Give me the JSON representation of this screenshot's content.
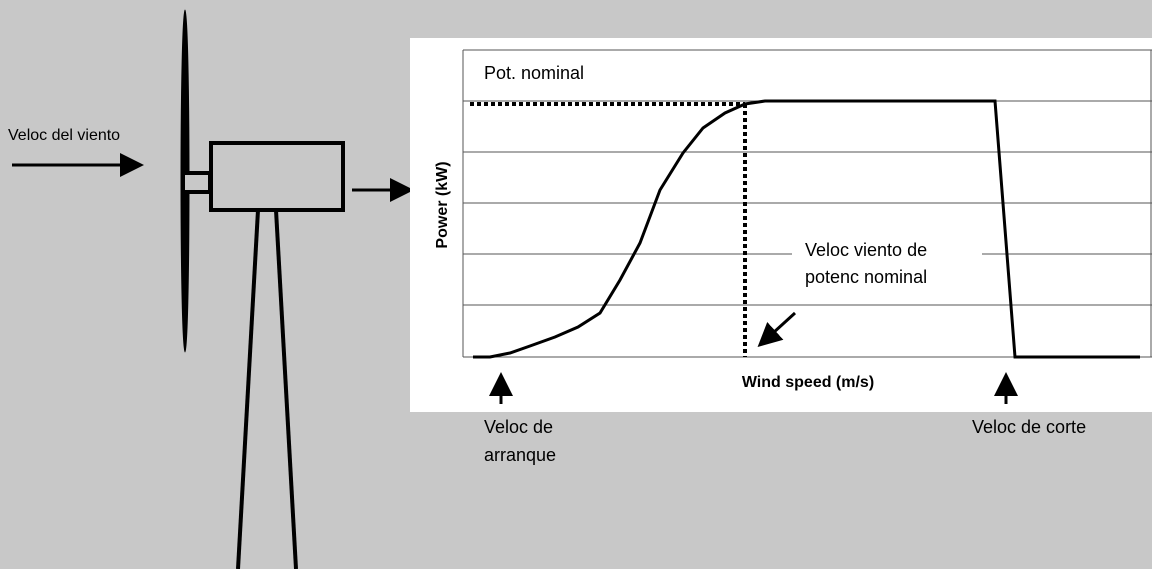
{
  "wind_label": "Veloc del viento",
  "chart": {
    "rated_power_label": "Pot. nominal",
    "y_axis_title": "Power (kW)",
    "x_axis_title": "Wind speed (m/s)",
    "rated_speed_label": [
      "Veloc viento de",
      "potenc nominal"
    ]
  },
  "cut_in_label": [
    "Veloc de",
    "arranque"
  ],
  "cut_out_label": "Veloc de corte"
}
